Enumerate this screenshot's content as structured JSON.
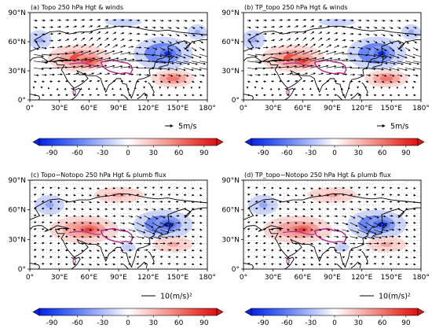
{
  "chart_data": [
    {
      "type": "heatmap",
      "title": "(a) Topo 250 hPa Hgt & winds",
      "x_ticks": [
        "0°",
        "30°E",
        "60°E",
        "90°E",
        "120°E",
        "150°E",
        "180°"
      ],
      "y_ticks": [
        "0°",
        "30°N",
        "60°N",
        "90°N"
      ],
      "xlim": [
        0,
        180
      ],
      "ylim": [
        0,
        90
      ],
      "vector_field": "winds",
      "reference_label": "5m/s",
      "colorbar": {
        "ticks": [
          "-90",
          "-60",
          "-30",
          "0",
          "30",
          "60",
          "90"
        ],
        "range": [
          -105,
          105
        ],
        "extend": "both"
      }
    },
    {
      "type": "heatmap",
      "title": "(b) TP_topo 250 hPa Hgt & winds",
      "x_ticks": [
        "0°",
        "30°E",
        "60°E",
        "90°E",
        "120°E",
        "150°E",
        "180°"
      ],
      "y_ticks": [
        "0°",
        "30°N",
        "60°N",
        "90°N"
      ],
      "xlim": [
        0,
        180
      ],
      "ylim": [
        0,
        90
      ],
      "vector_field": "winds",
      "reference_label": "5m/s",
      "colorbar": {
        "ticks": [
          "-90",
          "-60",
          "-30",
          "0",
          "30",
          "60",
          "90"
        ],
        "range": [
          -105,
          105
        ],
        "extend": "both"
      }
    },
    {
      "type": "heatmap",
      "title": "(c) Topo−Notopo 250 hPa Hgt & plumb flux",
      "x_ticks": [
        "0°",
        "30°E",
        "60°E",
        "90°E",
        "120°E",
        "150°E",
        "180°"
      ],
      "y_ticks": [
        "0°",
        "30°N",
        "60°N",
        "90°N"
      ],
      "xlim": [
        0,
        180
      ],
      "ylim": [
        0,
        90
      ],
      "vector_field": "plumb flux",
      "reference_label": "10(m/s)²",
      "colorbar": {
        "ticks": [
          "-90",
          "-60",
          "-30",
          "0",
          "30",
          "60",
          "90"
        ],
        "range": [
          -105,
          105
        ],
        "extend": "both"
      }
    },
    {
      "type": "heatmap",
      "title": "(d) TP_topo−Notopo 250 hPa Hgt & plumb flux",
      "x_ticks": [
        "0°",
        "30°E",
        "60°E",
        "90°E",
        "120°E",
        "150°E",
        "180°"
      ],
      "y_ticks": [
        "0°",
        "30°N",
        "60°N",
        "90°N"
      ],
      "xlim": [
        0,
        180
      ],
      "ylim": [
        0,
        90
      ],
      "vector_field": "plumb flux",
      "reference_label": "10(m/s)²",
      "colorbar": {
        "ticks": [
          "-90",
          "-60",
          "-30",
          "0",
          "30",
          "60",
          "90"
        ],
        "range": [
          -105,
          105
        ],
        "extend": "both"
      }
    }
  ],
  "colors": {
    "colormap": [
      "#0a23e6",
      "#2a4ef0",
      "#5878f4",
      "#8ea2f7",
      "#c4cffb",
      "#ffffff",
      "#fbd0cd",
      "#f6a09a",
      "#f07168",
      "#ea3b34",
      "#dc1414"
    ],
    "tibetan_plateau_contour": "#b4238c",
    "coastline": "#000000"
  }
}
